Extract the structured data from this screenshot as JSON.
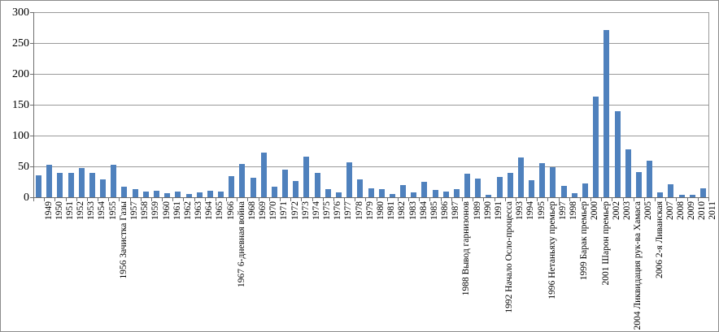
{
  "chart_data": {
    "type": "bar",
    "title": "",
    "xlabel": "",
    "ylabel": "",
    "ylim": [
      0,
      300
    ],
    "yticks": [
      0,
      50,
      100,
      150,
      200,
      250,
      300
    ],
    "grid": true,
    "legend": false,
    "bar_color": "#4F81BD",
    "gridline_color": "#9a9a9a",
    "axis_color": "#6e6e6e",
    "categories": [
      "1949",
      "1950",
      "1951",
      "1952",
      "1953",
      "1954",
      "1955",
      "1956 Зачистка Газы",
      "1957",
      "1958",
      "1959",
      "1960",
      "1961",
      "1962",
      "1963",
      "1964",
      "1965",
      "1966",
      "1967 6-дневная война",
      "1968",
      "1969",
      "1970",
      "1971",
      "1972",
      "1973",
      "1974",
      "1975",
      "1976",
      "1977",
      "1978",
      "1979",
      "1980",
      "1981",
      "1982",
      "1983",
      "1984",
      "1985",
      "1986",
      "1987",
      "1988 Вывод гарнизонов",
      "1989",
      "1990",
      "1991",
      "1992 Начало Осло-процесса",
      "1993",
      "1994",
      "1995",
      "1996 Нетаньяху премьер",
      "1997",
      "1998",
      "1999 Барак премьер",
      "2000",
      "2001 Шарон премьер",
      "2002",
      "2003",
      "2004 Ликвидация рук-ва Хамаса",
      "2005",
      "2006 2-я Ливанская",
      "2007",
      "2008",
      "2009",
      "2010",
      "2011"
    ],
    "values": [
      36,
      52,
      40,
      39,
      48,
      40,
      29,
      52,
      17,
      13,
      9,
      11,
      6,
      9,
      5,
      8,
      10,
      9,
      34,
      54,
      31,
      73,
      17,
      45,
      26,
      66,
      39,
      13,
      8,
      57,
      29,
      15,
      13,
      5,
      20,
      8,
      25,
      12,
      9,
      13,
      38,
      30,
      4,
      33,
      40,
      64,
      27,
      55,
      49,
      18,
      6,
      23,
      163,
      271,
      140,
      77,
      41,
      59,
      8,
      21,
      4,
      4,
      14
    ]
  }
}
